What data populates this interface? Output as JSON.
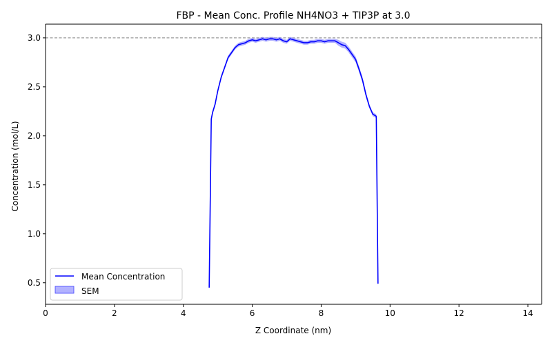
{
  "chart_data": {
    "type": "line",
    "title": "FBP - Mean Conc. Profile NH4NO3 + TIP3P at 3.0",
    "xlabel": "Z Coordinate (nm)",
    "ylabel": "Concentration (mol/L)",
    "xlim": [
      0,
      14.4
    ],
    "ylim": [
      0.28,
      3.14
    ],
    "xticks": [
      0,
      2,
      4,
      6,
      8,
      10,
      12,
      14
    ],
    "yticks": [
      0.5,
      1.0,
      1.5,
      2.0,
      2.5,
      3.0
    ],
    "grid": false,
    "legend": {
      "position": "lower-left",
      "entries": [
        "Mean Concentration",
        "SEM"
      ]
    },
    "reference_line": {
      "y": 3.0,
      "style": "dashed",
      "color": "#808080"
    },
    "colors": {
      "line": "#0000ff",
      "band": "#7f7fff"
    },
    "series": [
      {
        "name": "Mean Concentration",
        "x": [
          4.75,
          4.81,
          4.85,
          4.92,
          5.0,
          5.1,
          5.2,
          5.3,
          5.4,
          5.5,
          5.6,
          5.7,
          5.8,
          5.9,
          6.0,
          6.1,
          6.2,
          6.3,
          6.4,
          6.5,
          6.6,
          6.7,
          6.8,
          6.9,
          7.0,
          7.1,
          7.2,
          7.3,
          7.4,
          7.5,
          7.6,
          7.7,
          7.8,
          7.9,
          8.0,
          8.1,
          8.2,
          8.3,
          8.4,
          8.5,
          8.6,
          8.7,
          8.8,
          8.9,
          9.0,
          9.1,
          9.2,
          9.3,
          9.4,
          9.5,
          9.6,
          9.65
        ],
        "y": [
          0.45,
          2.17,
          2.24,
          2.32,
          2.46,
          2.6,
          2.7,
          2.8,
          2.85,
          2.9,
          2.93,
          2.94,
          2.95,
          2.97,
          2.98,
          2.97,
          2.98,
          2.99,
          2.98,
          2.99,
          2.99,
          2.98,
          2.99,
          2.97,
          2.96,
          2.99,
          2.98,
          2.97,
          2.96,
          2.95,
          2.95,
          2.96,
          2.96,
          2.97,
          2.97,
          2.96,
          2.97,
          2.97,
          2.97,
          2.95,
          2.93,
          2.92,
          2.88,
          2.83,
          2.78,
          2.68,
          2.57,
          2.42,
          2.3,
          2.22,
          2.2,
          0.49
        ]
      },
      {
        "name": "SEM",
        "x": [
          4.75,
          4.81,
          4.85,
          4.92,
          5.0,
          5.1,
          5.2,
          5.3,
          5.4,
          5.5,
          5.6,
          5.7,
          5.8,
          5.9,
          6.0,
          6.1,
          6.2,
          6.3,
          6.4,
          6.5,
          6.6,
          6.7,
          6.8,
          6.9,
          7.0,
          7.1,
          7.2,
          7.3,
          7.4,
          7.5,
          7.6,
          7.7,
          7.8,
          7.9,
          8.0,
          8.1,
          8.2,
          8.3,
          8.4,
          8.5,
          8.6,
          8.7,
          8.8,
          8.9,
          9.0,
          9.1,
          9.2,
          9.3,
          9.4,
          9.5,
          9.6,
          9.65
        ],
        "error": [
          0.03,
          0.02,
          0.02,
          0.02,
          0.02,
          0.02,
          0.02,
          0.02,
          0.02,
          0.02,
          0.02,
          0.02,
          0.02,
          0.02,
          0.02,
          0.02,
          0.02,
          0.02,
          0.02,
          0.02,
          0.02,
          0.02,
          0.02,
          0.02,
          0.02,
          0.02,
          0.02,
          0.02,
          0.02,
          0.02,
          0.02,
          0.02,
          0.02,
          0.02,
          0.02,
          0.02,
          0.02,
          0.02,
          0.02,
          0.03,
          0.03,
          0.03,
          0.03,
          0.03,
          0.03,
          0.03,
          0.03,
          0.03,
          0.02,
          0.02,
          0.02,
          0.03
        ]
      }
    ]
  }
}
